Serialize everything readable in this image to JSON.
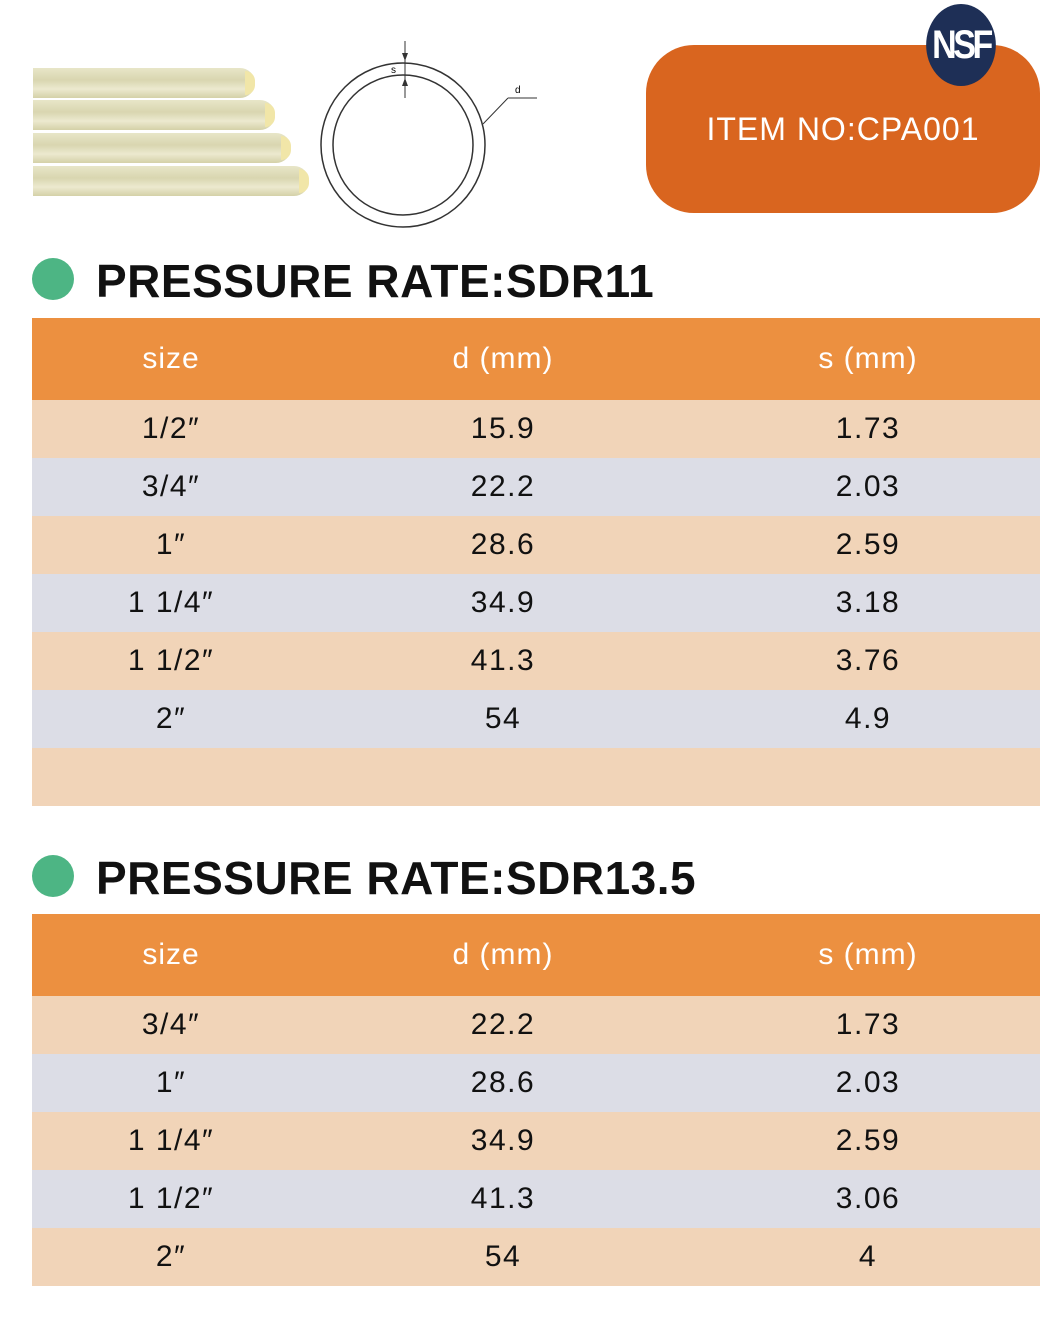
{
  "header": {
    "item_no": "ITEM NO:CPA001",
    "certification_logo": "NSF",
    "diagram_labels": {
      "wall": "s",
      "diameter": "d"
    }
  },
  "colors": {
    "table_header": "#ec9040",
    "row_peach": "#f1d4b8",
    "row_gray": "#dcdde6",
    "badge": "#d9651f",
    "bullet": "#4db584"
  },
  "sections": [
    {
      "title": "PRESSURE RATE:SDR11",
      "columns": [
        "size",
        "d (mm)",
        "s (mm)"
      ],
      "rows": [
        [
          "1/2″",
          "15.9",
          "1.73"
        ],
        [
          "3/4″",
          "22.2",
          "2.03"
        ],
        [
          "1″",
          "28.6",
          "2.59"
        ],
        [
          "1 1/4″",
          "34.9",
          "3.18"
        ],
        [
          "1 1/2″",
          "41.3",
          "3.76"
        ],
        [
          "2″",
          "54",
          "4.9"
        ],
        [
          "",
          "",
          ""
        ]
      ]
    },
    {
      "title": "PRESSURE RATE:SDR13.5",
      "columns": [
        "size",
        "d (mm)",
        "s (mm)"
      ],
      "rows": [
        [
          "3/4″",
          "22.2",
          "1.73"
        ],
        [
          "1″",
          "28.6",
          "2.03"
        ],
        [
          "1 1/4″",
          "34.9",
          "2.59"
        ],
        [
          "1 1/2″",
          "41.3",
          "3.06"
        ],
        [
          "2″",
          "54",
          "4"
        ]
      ]
    }
  ]
}
